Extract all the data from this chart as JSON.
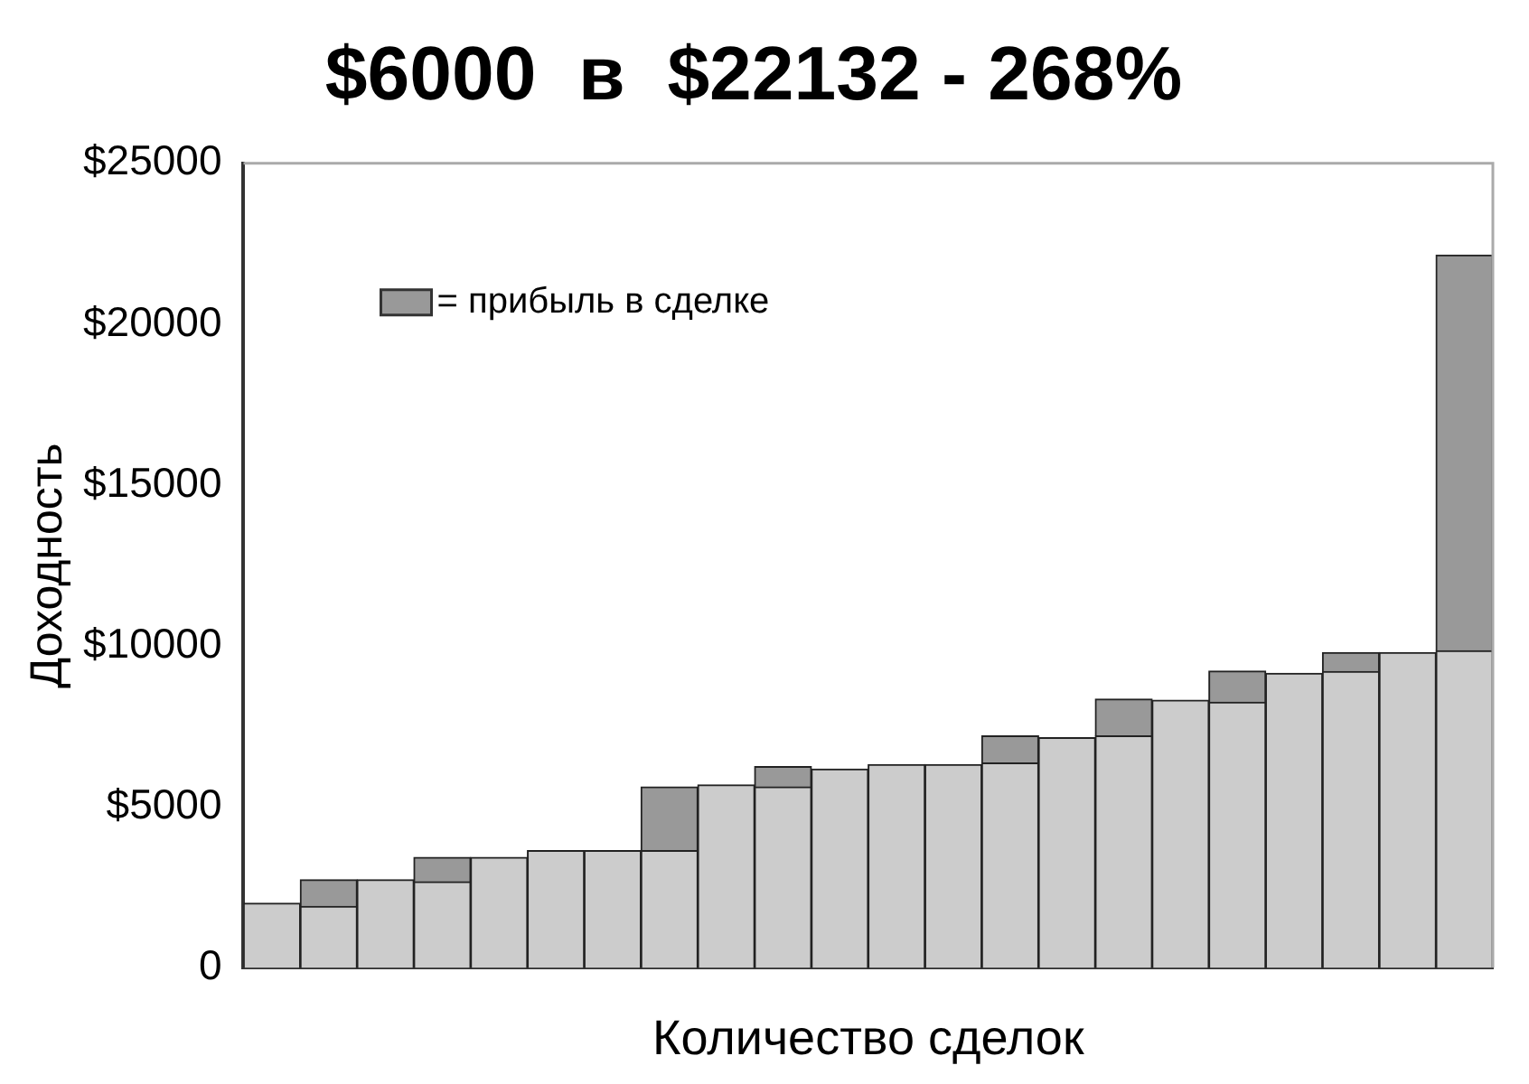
{
  "chart_data": {
    "type": "bar",
    "title": "$6000  в  $22132 - 268%",
    "xlabel": "Количество сделок",
    "ylabel": "Доходность",
    "stacked": true,
    "categories": [
      null,
      null,
      null,
      null,
      null,
      null,
      null,
      null,
      null,
      null,
      null,
      null,
      null,
      null,
      null,
      null,
      null,
      null,
      null,
      null,
      null,
      null
    ],
    "series": [
      {
        "color": "#cccccc",
        "values": [
          2000,
          1900,
          2730,
          2670,
          3430,
          3640,
          3640,
          3640,
          5680,
          5620,
          6170,
          6310,
          6310,
          6360,
          7150,
          7200,
          8310,
          8250,
          9150,
          9200,
          9790,
          9850
        ]
      },
      {
        "name": "= прибыль в сделке",
        "color": "#999999",
        "values": [
          null,
          830,
          null,
          760,
          null,
          null,
          null,
          1980,
          null,
          630,
          null,
          null,
          null,
          840,
          null,
          1150,
          null,
          970,
          null,
          590,
          null,
          12300
        ]
      }
    ],
    "ylim": [
      0,
      25000
    ],
    "yticks": [
      0,
      {
        "value": 5000,
        "label": "$5000"
      },
      {
        "value": 10000,
        "label": "$10000"
      },
      {
        "value": 15000,
        "label": "$15000"
      },
      {
        "value": 20000,
        "label": "$20000"
      },
      {
        "value": 25000,
        "label": "$25000"
      }
    ],
    "grid": false,
    "legend": "top left"
  }
}
